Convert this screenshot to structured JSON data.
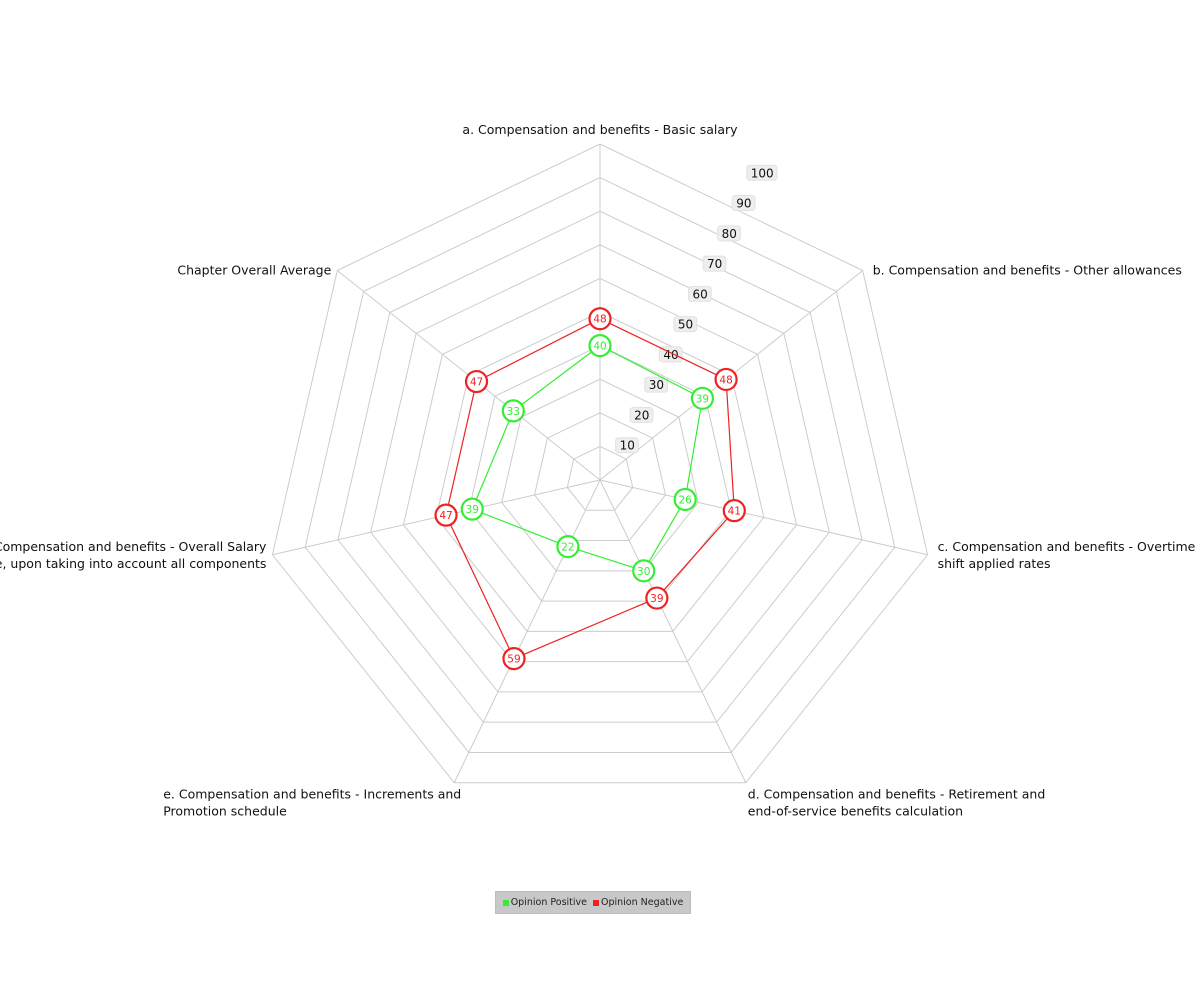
{
  "chart_data": {
    "type": "radar",
    "scale": {
      "min": 0,
      "max": 100,
      "step": 10
    },
    "tick_labels": [
      "10",
      "20",
      "30",
      "40",
      "50",
      "60",
      "70",
      "80",
      "90",
      "100"
    ],
    "axes": [
      {
        "lines": [
          "a. Compensation and benefits - Basic salary"
        ]
      },
      {
        "lines": [
          "b. Compensation and benefits - Other allowances"
        ]
      },
      {
        "lines": [
          "c. Compensation and benefits - Overtime  night",
          "shift applied rates"
        ]
      },
      {
        "lines": [
          "d. Compensation and benefits - Retirement and",
          "end-of-service benefits calculation"
        ]
      },
      {
        "lines": [
          "e. Compensation and benefits - Increments and",
          "Promotion schedule"
        ]
      },
      {
        "lines": [
          "f. Compensation and benefits - Overall Salary",
          "package, upon taking into account all components"
        ]
      },
      {
        "lines": [
          "Chapter Overall Average"
        ]
      }
    ],
    "series": [
      {
        "name": "Opinion Positive",
        "color": "#33ee33",
        "values": [
          40,
          39,
          26,
          30,
          22,
          39,
          33
        ]
      },
      {
        "name": "Opinion Negative",
        "color": "#ee2222",
        "values": [
          48,
          48,
          41,
          39,
          59,
          47,
          47
        ]
      }
    ],
    "grid": true,
    "legend_position": "bottom"
  },
  "legend": {
    "items": [
      {
        "label": "Opinion Positive",
        "color": "#33ee33"
      },
      {
        "label": "Opinion Negative",
        "color": "#ee2222"
      }
    ]
  }
}
